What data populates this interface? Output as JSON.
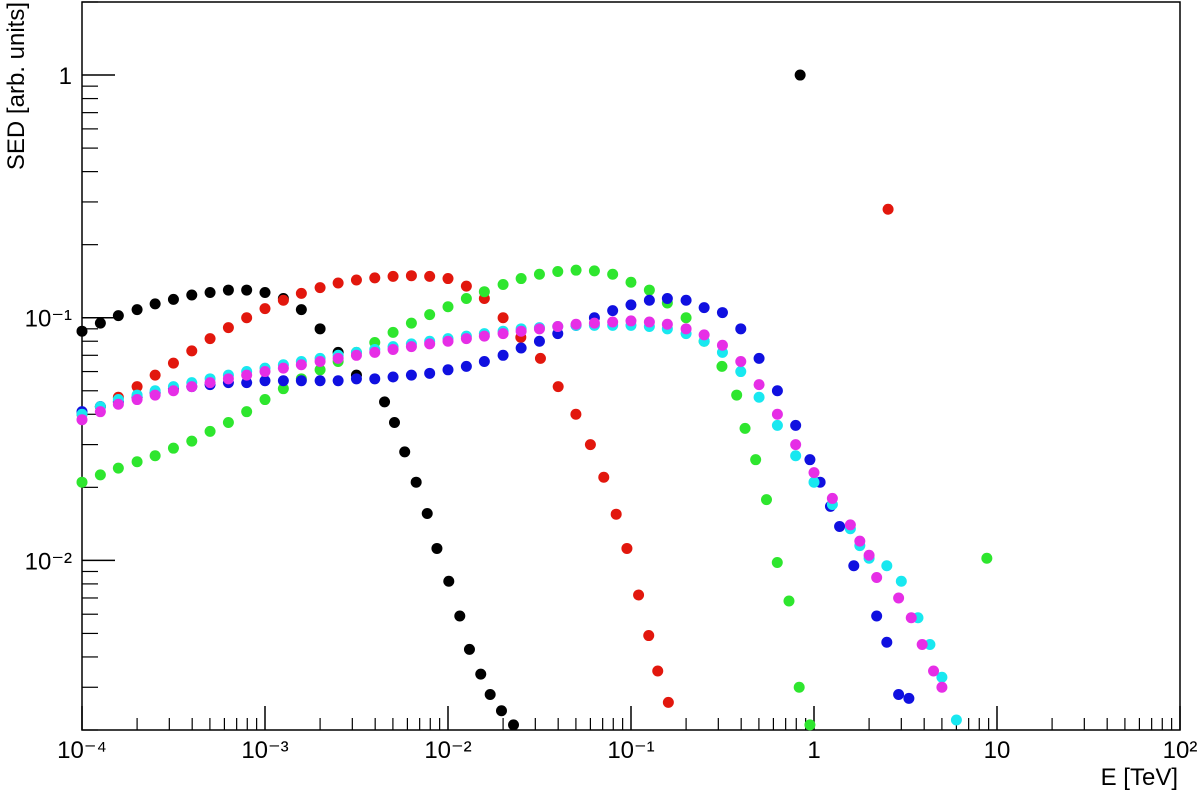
{
  "chart_data": {
    "type": "scatter",
    "xlabel": "E [TeV]",
    "ylabel": "SED [arb. units]",
    "xlog": true,
    "ylog": true,
    "xlim": [
      0.0001,
      100
    ],
    "ylim": [
      0.002,
      2
    ],
    "xticks": [
      {
        "value": 0.0001,
        "label": "10⁻⁴"
      },
      {
        "value": 0.001,
        "label": "10⁻³"
      },
      {
        "value": 0.01,
        "label": "10⁻²"
      },
      {
        "value": 0.1,
        "label": "10⁻¹"
      },
      1,
      10,
      {
        "value": 100,
        "label": "10²"
      }
    ],
    "yticks": [
      {
        "value": 0.01,
        "label": "10⁻²"
      },
      {
        "value": 0.1,
        "label": "10⁻¹"
      },
      1
    ],
    "series": [
      {
        "color": "#000000",
        "x": [
          0.0001,
          0.000126,
          0.000158,
          0.0002,
          0.000251,
          0.000316,
          0.000398,
          0.000501,
          0.000631,
          0.000794,
          0.001,
          0.00126,
          0.00158,
          0.002,
          0.00251,
          0.00316,
          0.0045,
          0.0051,
          0.0058,
          0.0067,
          0.0077,
          0.0087,
          0.0101,
          0.0116,
          0.0131,
          0.0151,
          0.017,
          0.0196,
          0.0228,
          0.84
        ],
        "values": [
          0.088,
          0.095,
          0.102,
          0.108,
          0.114,
          0.119,
          0.124,
          0.127,
          0.13,
          0.13,
          0.127,
          0.12,
          0.108,
          0.09,
          0.072,
          0.058,
          0.045,
          0.037,
          0.028,
          0.021,
          0.0156,
          0.0112,
          0.0082,
          0.0059,
          0.0043,
          0.0034,
          0.0028,
          0.0024,
          0.0021,
          1
        ]
      },
      {
        "color": "#e2170d",
        "x": [
          0.0001,
          0.000126,
          0.000158,
          0.0002,
          0.000251,
          0.000316,
          0.000398,
          0.000501,
          0.000631,
          0.000794,
          0.001,
          0.00126,
          0.00158,
          0.002,
          0.00251,
          0.00316,
          0.00398,
          0.00501,
          0.00631,
          0.00794,
          0.01,
          0.0126,
          0.0158,
          0.02,
          0.025,
          0.032,
          0.04,
          0.05,
          0.06,
          0.071,
          0.083,
          0.095,
          0.11,
          0.125,
          0.14,
          0.16,
          2.54
        ],
        "values": [
          0.04,
          0.043,
          0.047,
          0.052,
          0.058,
          0.065,
          0.073,
          0.082,
          0.091,
          0.1,
          0.109,
          0.118,
          0.126,
          0.133,
          0.139,
          0.143,
          0.146,
          0.148,
          0.149,
          0.148,
          0.145,
          0.135,
          0.12,
          0.1,
          0.083,
          0.068,
          0.052,
          0.04,
          0.03,
          0.022,
          0.0155,
          0.0112,
          0.0072,
          0.0049,
          0.0035,
          0.0026,
          0.28
        ]
      },
      {
        "color": "#2ee62e",
        "x": [
          0.0001,
          0.000126,
          0.000158,
          0.0002,
          0.000251,
          0.000316,
          0.000398,
          0.000501,
          0.000631,
          0.000794,
          0.001,
          0.00126,
          0.00158,
          0.002,
          0.00251,
          0.00316,
          0.00398,
          0.00501,
          0.00631,
          0.00794,
          0.01,
          0.0126,
          0.0158,
          0.02,
          0.0251,
          0.0316,
          0.0398,
          0.0501,
          0.0631,
          0.0794,
          0.1,
          0.126,
          0.158,
          0.2,
          0.251,
          0.314,
          0.378,
          0.42,
          0.48,
          0.55,
          0.63,
          0.73,
          0.83,
          0.95,
          8.8
        ],
        "values": [
          0.021,
          0.0225,
          0.024,
          0.0255,
          0.027,
          0.029,
          0.031,
          0.034,
          0.037,
          0.041,
          0.046,
          0.051,
          0.056,
          0.061,
          0.066,
          0.072,
          0.079,
          0.087,
          0.095,
          0.103,
          0.111,
          0.12,
          0.128,
          0.137,
          0.145,
          0.151,
          0.155,
          0.157,
          0.156,
          0.151,
          0.14,
          0.13,
          0.115,
          0.1,
          0.08,
          0.063,
          0.048,
          0.035,
          0.026,
          0.0178,
          0.0098,
          0.0068,
          0.003,
          0.0021,
          0.0102
        ]
      },
      {
        "color": "#1010e0",
        "x": [
          0.0001,
          0.000126,
          0.000158,
          0.0002,
          0.000251,
          0.000316,
          0.000398,
          0.000501,
          0.000631,
          0.000794,
          0.001,
          0.00126,
          0.00158,
          0.002,
          0.00251,
          0.00316,
          0.00398,
          0.00501,
          0.00631,
          0.00794,
          0.01,
          0.0126,
          0.0158,
          0.02,
          0.0251,
          0.0316,
          0.0398,
          0.0501,
          0.0631,
          0.0794,
          0.1,
          0.126,
          0.158,
          0.2,
          0.251,
          0.316,
          0.398,
          0.501,
          0.631,
          0.794,
          0.95,
          1.08,
          1.23,
          1.38,
          1.65,
          2.2,
          2.5,
          2.9,
          3.3
        ],
        "values": [
          0.041,
          0.043,
          0.045,
          0.047,
          0.049,
          0.051,
          0.052,
          0.053,
          0.054,
          0.054,
          0.055,
          0.055,
          0.055,
          0.055,
          0.055,
          0.056,
          0.056,
          0.057,
          0.058,
          0.059,
          0.061,
          0.063,
          0.066,
          0.07,
          0.075,
          0.08,
          0.086,
          0.093,
          0.1,
          0.107,
          0.113,
          0.118,
          0.12,
          0.118,
          0.11,
          0.105,
          0.09,
          0.068,
          0.05,
          0.036,
          0.026,
          0.021,
          0.0167,
          0.0138,
          0.0095,
          0.0059,
          0.0046,
          0.0028,
          0.0027
        ]
      },
      {
        "color": "#18e8f0",
        "x": [
          0.0001,
          0.000126,
          0.000158,
          0.0002,
          0.000251,
          0.000316,
          0.000398,
          0.000501,
          0.000631,
          0.000794,
          0.001,
          0.00126,
          0.00158,
          0.002,
          0.00251,
          0.00316,
          0.00398,
          0.00501,
          0.00631,
          0.00794,
          0.01,
          0.0126,
          0.0158,
          0.02,
          0.0251,
          0.0316,
          0.0398,
          0.0501,
          0.0631,
          0.0794,
          0.1,
          0.126,
          0.158,
          0.2,
          0.251,
          0.316,
          0.398,
          0.501,
          0.631,
          0.794,
          1,
          1.26,
          1.58,
          1.78,
          2,
          2.5,
          3,
          3.7,
          4.3,
          5,
          6
        ],
        "values": [
          0.04,
          0.043,
          0.046,
          0.048,
          0.05,
          0.052,
          0.054,
          0.056,
          0.058,
          0.06,
          0.062,
          0.064,
          0.066,
          0.068,
          0.07,
          0.072,
          0.074,
          0.076,
          0.078,
          0.08,
          0.082,
          0.084,
          0.086,
          0.088,
          0.09,
          0.091,
          0.092,
          0.093,
          0.093,
          0.093,
          0.093,
          0.092,
          0.09,
          0.086,
          0.08,
          0.072,
          0.06,
          0.047,
          0.036,
          0.027,
          0.021,
          0.017,
          0.0135,
          0.0115,
          0.0102,
          0.0095,
          0.0082,
          0.0058,
          0.0045,
          0.0033,
          0.0022
        ]
      },
      {
        "color": "#e62ee6",
        "x": [
          0.0001,
          0.000126,
          0.000158,
          0.0002,
          0.000251,
          0.000316,
          0.000398,
          0.000501,
          0.000631,
          0.000794,
          0.001,
          0.00126,
          0.00158,
          0.002,
          0.00251,
          0.00316,
          0.00398,
          0.00501,
          0.00631,
          0.00794,
          0.01,
          0.0126,
          0.0158,
          0.02,
          0.0251,
          0.0316,
          0.0398,
          0.0501,
          0.0631,
          0.0794,
          0.1,
          0.126,
          0.158,
          0.2,
          0.251,
          0.316,
          0.398,
          0.501,
          0.631,
          0.794,
          1,
          1.26,
          1.58,
          1.78,
          2,
          2.2,
          2.9,
          3.4,
          3.9,
          4.5,
          5
        ],
        "values": [
          0.038,
          0.041,
          0.044,
          0.046,
          0.048,
          0.05,
          0.052,
          0.054,
          0.056,
          0.058,
          0.06,
          0.062,
          0.064,
          0.066,
          0.068,
          0.07,
          0.072,
          0.074,
          0.076,
          0.078,
          0.08,
          0.082,
          0.084,
          0.086,
          0.088,
          0.09,
          0.092,
          0.094,
          0.095,
          0.096,
          0.097,
          0.096,
          0.094,
          0.09,
          0.085,
          0.077,
          0.066,
          0.053,
          0.04,
          0.03,
          0.023,
          0.018,
          0.014,
          0.012,
          0.0105,
          0.0085,
          0.007,
          0.0058,
          0.0045,
          0.0035,
          0.003
        ]
      }
    ]
  }
}
